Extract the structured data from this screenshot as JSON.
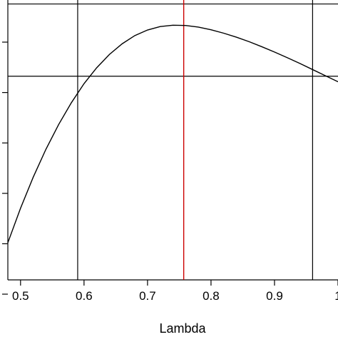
{
  "chart_data": {
    "type": "line",
    "title": "",
    "xlabel": "Lambda",
    "ylabel": "",
    "xlim": [
      0.48,
      1.0
    ],
    "x_ticks": [
      0.5,
      0.6,
      0.7,
      0.8,
      0.9,
      1.0
    ],
    "x_tick_labels": [
      "0.5",
      "0.6",
      "0.7",
      "0.8",
      "0.9",
      "1"
    ],
    "y_tick_count": 6,
    "grid": false,
    "series": [
      {
        "x": [
          0.48,
          0.5,
          0.52,
          0.54,
          0.56,
          0.58,
          0.6,
          0.62,
          0.64,
          0.66,
          0.68,
          0.7,
          0.72,
          0.74,
          0.76,
          0.78,
          0.8,
          0.82,
          0.84,
          0.86,
          0.88,
          0.9,
          0.92,
          0.94,
          0.96,
          0.98,
          1.0
        ],
        "y": [
          -7.59,
          -6.29,
          -5.12,
          -4.07,
          -3.14,
          -2.32,
          -1.6,
          -1.0,
          -0.5,
          -0.1,
          0.21,
          0.42,
          0.55,
          0.6,
          0.59,
          0.53,
          0.43,
          0.3,
          0.15,
          -0.02,
          -0.21,
          -0.41,
          -0.62,
          -0.84,
          -1.07,
          -1.3,
          -1.53
        ]
      }
    ],
    "reference_lines": {
      "vertical_black": [
        0.59,
        0.96
      ],
      "vertical_red": 0.757,
      "horizontal_black": -1.32,
      "top_border_y": 1.4
    },
    "colors": {
      "curve": "#000000",
      "red_line": "#cc0000",
      "frame": "#000000"
    }
  }
}
